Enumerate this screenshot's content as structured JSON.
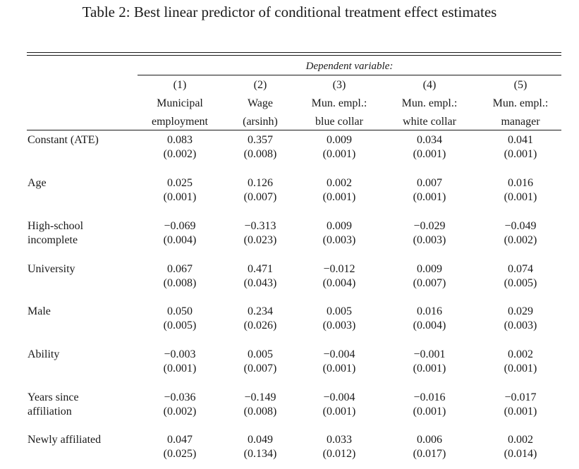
{
  "caption": "Table 2: Best linear predictor of conditional treatment effect estimates",
  "dependent_variable_label": "Dependent variable:",
  "columns": [
    {
      "number": "(1)",
      "line1": "Municipal",
      "line2": "employment"
    },
    {
      "number": "(2)",
      "line1": "Wage",
      "line2": "(arsinh)"
    },
    {
      "number": "(3)",
      "line1": "Mun. empl.:",
      "line2": "blue collar"
    },
    {
      "number": "(4)",
      "line1": "Mun. empl.:",
      "line2": "white collar"
    },
    {
      "number": "(5)",
      "line1": "Mun. empl.:",
      "line2": "manager"
    }
  ],
  "rows": [
    {
      "label": [
        "Constant (ATE)"
      ],
      "estimates": [
        "0.083",
        "0.357",
        "0.009",
        "0.034",
        "0.041"
      ],
      "se": [
        "(0.002)",
        "(0.008)",
        "(0.001)",
        "(0.001)",
        "(0.001)"
      ]
    },
    {
      "label": [
        "Age"
      ],
      "estimates": [
        "0.025",
        "0.126",
        "0.002",
        "0.007",
        "0.016"
      ],
      "se": [
        "(0.001)",
        "(0.007)",
        "(0.001)",
        "(0.001)",
        "(0.001)"
      ]
    },
    {
      "label": [
        "High-school",
        "incomplete"
      ],
      "estimates": [
        "−0.069",
        "−0.313",
        "0.009",
        "−0.029",
        "−0.049"
      ],
      "se": [
        "(0.004)",
        "(0.023)",
        "(0.003)",
        "(0.003)",
        "(0.002)"
      ]
    },
    {
      "label": [
        "University"
      ],
      "estimates": [
        "0.067",
        "0.471",
        "−0.012",
        "0.009",
        "0.074"
      ],
      "se": [
        "(0.008)",
        "(0.043)",
        "(0.004)",
        "(0.007)",
        "(0.005)"
      ]
    },
    {
      "label": [
        "Male"
      ],
      "estimates": [
        "0.050",
        "0.234",
        "0.005",
        "0.016",
        "0.029"
      ],
      "se": [
        "(0.005)",
        "(0.026)",
        "(0.003)",
        "(0.004)",
        "(0.003)"
      ]
    },
    {
      "label": [
        "Ability"
      ],
      "estimates": [
        "−0.003",
        "0.005",
        "−0.004",
        "−0.001",
        "0.002"
      ],
      "se": [
        "(0.001)",
        "(0.007)",
        "(0.001)",
        "(0.001)",
        "(0.001)"
      ]
    },
    {
      "label": [
        "Years since",
        "affiliation"
      ],
      "estimates": [
        "−0.036",
        "−0.149",
        "−0.004",
        "−0.016",
        "−0.017"
      ],
      "se": [
        "(0.002)",
        "(0.008)",
        "(0.001)",
        "(0.001)",
        "(0.001)"
      ]
    },
    {
      "label": [
        "Newly affiliated"
      ],
      "estimates": [
        "0.047",
        "0.049",
        "0.033",
        "0.006",
        "0.002"
      ],
      "se": [
        "(0.025)",
        "(0.134)",
        "(0.012)",
        "(0.017)",
        "(0.014)"
      ]
    }
  ]
}
